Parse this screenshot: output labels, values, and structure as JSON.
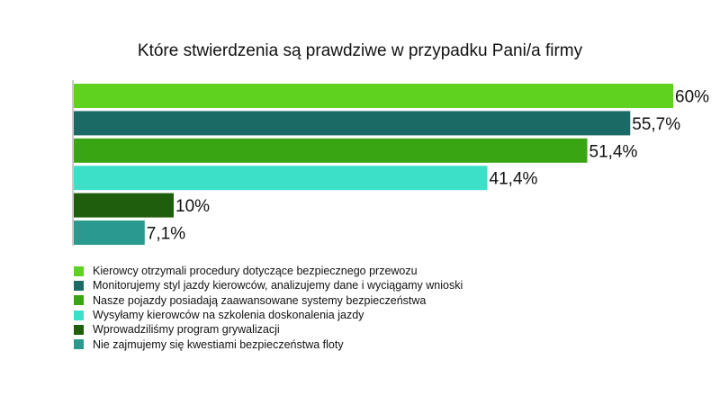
{
  "chart_data": {
    "type": "bar",
    "orientation": "horizontal",
    "title": "Które stwierdzenia są prawdziwe w przypadku Pani/a firmy",
    "xlim": [
      0,
      60
    ],
    "grid": false,
    "legend_position": "bottom-left",
    "categories": [
      "Kierowcy otrzymali procedury dotyczące bezpiecznego przewozu",
      "Monitorujemy styl jazdy kierowców, analizujemy dane i wyciągamy wnioski",
      "Nasze pojazdy posiadają zaawansowane systemy bezpieczeństwa",
      "Wysyłamy kierowców na szkolenia doskonalenia jazdy",
      "Wprowadziliśmy program grywalizacji",
      "Nie zajmujemy się kwestiami bezpieczeństwa floty"
    ],
    "values": [
      60,
      55.7,
      51.4,
      41.4,
      10,
      7.1
    ],
    "labels": [
      "60%",
      "55,7%",
      "51,4%",
      "41,4%",
      "10%",
      "7,1%"
    ],
    "colors": [
      "#5ed21e",
      "#1c6a66",
      "#3aa512",
      "#3ce0c8",
      "#1f5e0c",
      "#2a9a8e"
    ]
  }
}
